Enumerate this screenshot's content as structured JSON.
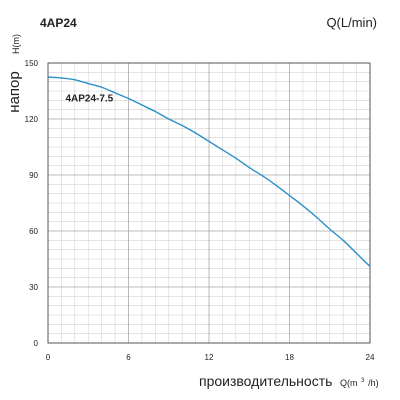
{
  "chart_data": {
    "type": "line",
    "title": "4AP24",
    "top_right_label": "Q(L/min)",
    "ylabel_word": "напор",
    "ylabel_unit": "H(m)",
    "xlabel_word": "производительность",
    "xlabel_unit_prefix": "Q(m",
    "xlabel_unit_sup": "3",
    "xlabel_unit_suffix": "/h)",
    "xlim": [
      0,
      24
    ],
    "ylim": [
      0,
      150
    ],
    "x_ticks": [
      0,
      6,
      12,
      18,
      24
    ],
    "y_ticks": [
      0,
      30,
      60,
      90,
      120,
      150
    ],
    "grid": true,
    "series": [
      {
        "name": "4AP24-7.5",
        "color": "#2b8fc9",
        "x": [
          0,
          1,
          2,
          3,
          4,
          5,
          6,
          7,
          8,
          9,
          10,
          11,
          12,
          13,
          14,
          15,
          16,
          17,
          18,
          19,
          20,
          21,
          22,
          23,
          24
        ],
        "y": [
          142.5,
          142,
          141,
          139,
          137,
          134,
          131,
          127.5,
          124,
          120,
          116.5,
          112.5,
          108,
          103.5,
          99,
          94,
          89.5,
          84.5,
          79,
          73.5,
          67.5,
          61,
          55,
          48,
          41
        ]
      }
    ]
  }
}
